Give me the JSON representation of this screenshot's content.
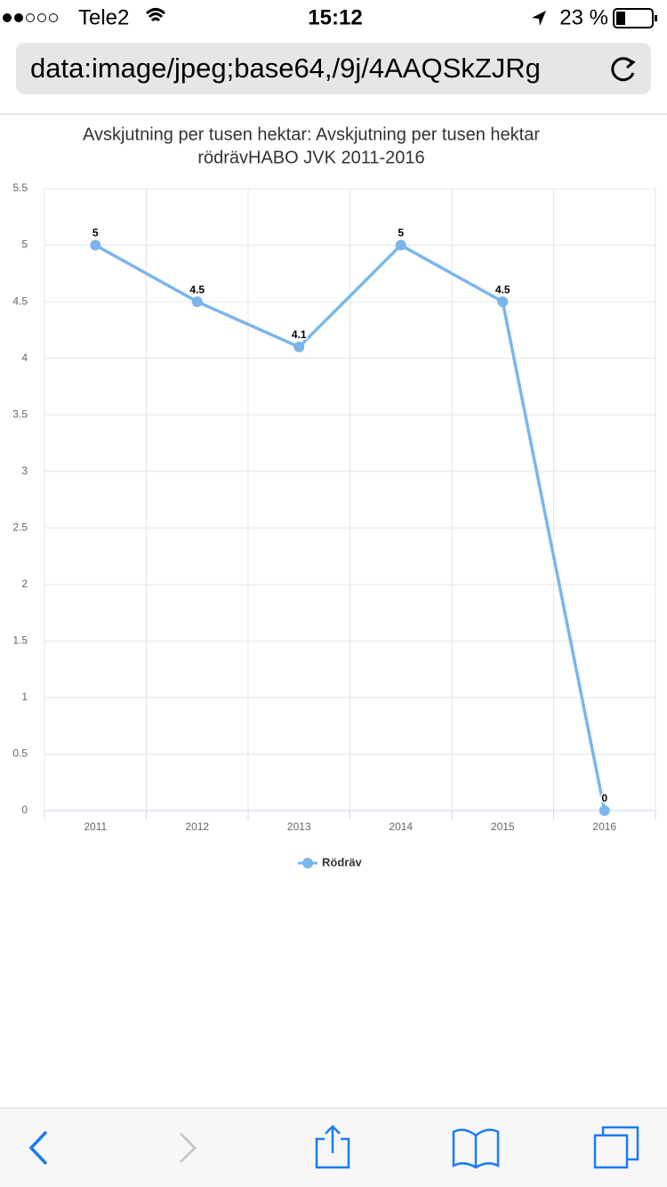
{
  "status_bar": {
    "carrier": "Tele2",
    "time": "15:12",
    "battery": "23 %"
  },
  "address_bar": {
    "url": "data:image/jpeg;base64,/9j/4AAQSkZJRg"
  },
  "chart_data": {
    "type": "line",
    "title": [
      "Avskjutning per tusen hektar: Avskjutning per tusen hektar",
      "rödrävHABO JVK 2011-2016"
    ],
    "categories": [
      "2011",
      "2012",
      "2013",
      "2014",
      "2015",
      "2016"
    ],
    "series": [
      {
        "name": "Rödräv",
        "color": "#7cb5ec",
        "values": [
          5,
          4.5,
          4.1,
          5,
          4.5,
          0
        ]
      }
    ],
    "ylim": [
      0,
      5.5
    ],
    "yticks": [
      0,
      0.5,
      1,
      1.5,
      2,
      2.5,
      3,
      3.5,
      4,
      4.5,
      5,
      5.5
    ],
    "grid": true,
    "legend": "bottom"
  }
}
